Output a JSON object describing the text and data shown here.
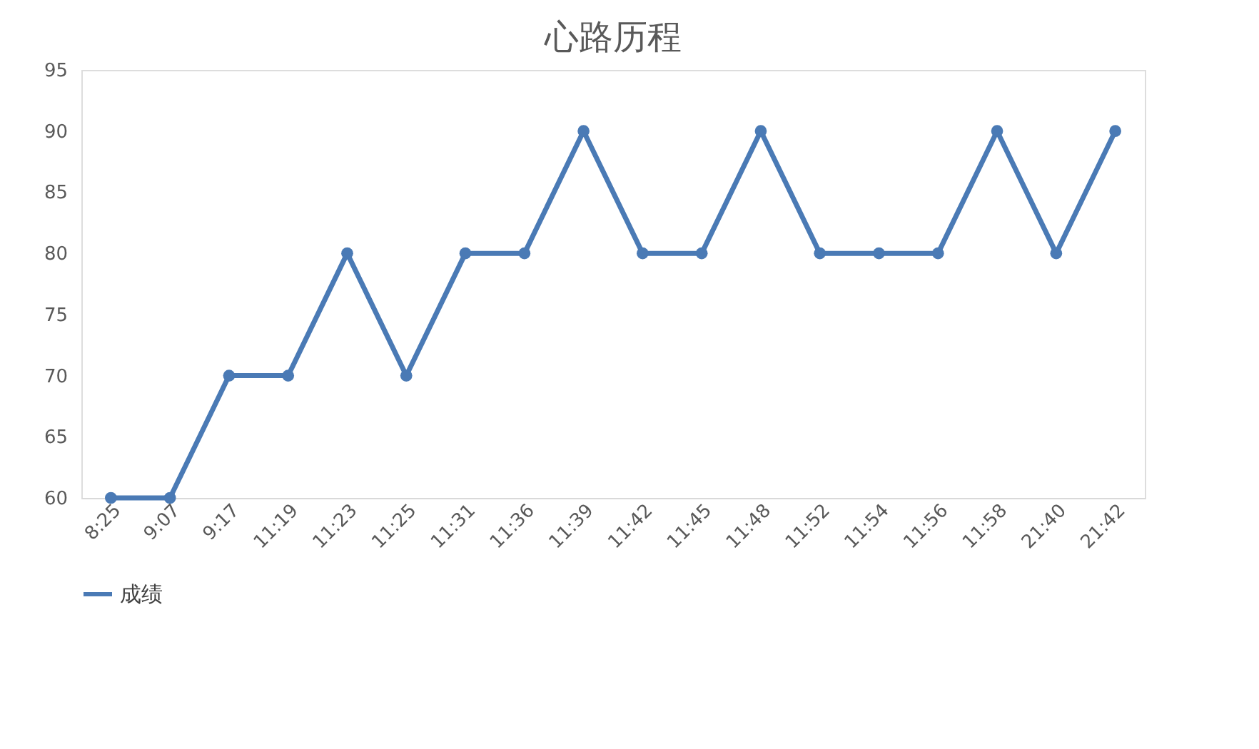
{
  "chart_data": {
    "type": "line",
    "title": "心路历程",
    "categories": [
      "8:25",
      "9:07",
      "9:17",
      "11:19",
      "11:23",
      "11:25",
      "11:31",
      "11:36",
      "11:39",
      "11:42",
      "11:45",
      "11:48",
      "11:52",
      "11:54",
      "11:56",
      "11:58",
      "21:40",
      "21:42"
    ],
    "series": [
      {
        "name": "成绩",
        "color": "#4a7ab5",
        "values": [
          60,
          60,
          70,
          70,
          80,
          70,
          80,
          80,
          90,
          80,
          80,
          90,
          80,
          80,
          80,
          90,
          80,
          90
        ]
      }
    ],
    "ylim": [
      60,
      95
    ],
    "yticks": [
      60,
      65,
      70,
      75,
      80,
      85,
      90,
      95
    ],
    "grid": false,
    "legend": "bottom",
    "marker": "circle",
    "line_style": "solid"
  }
}
